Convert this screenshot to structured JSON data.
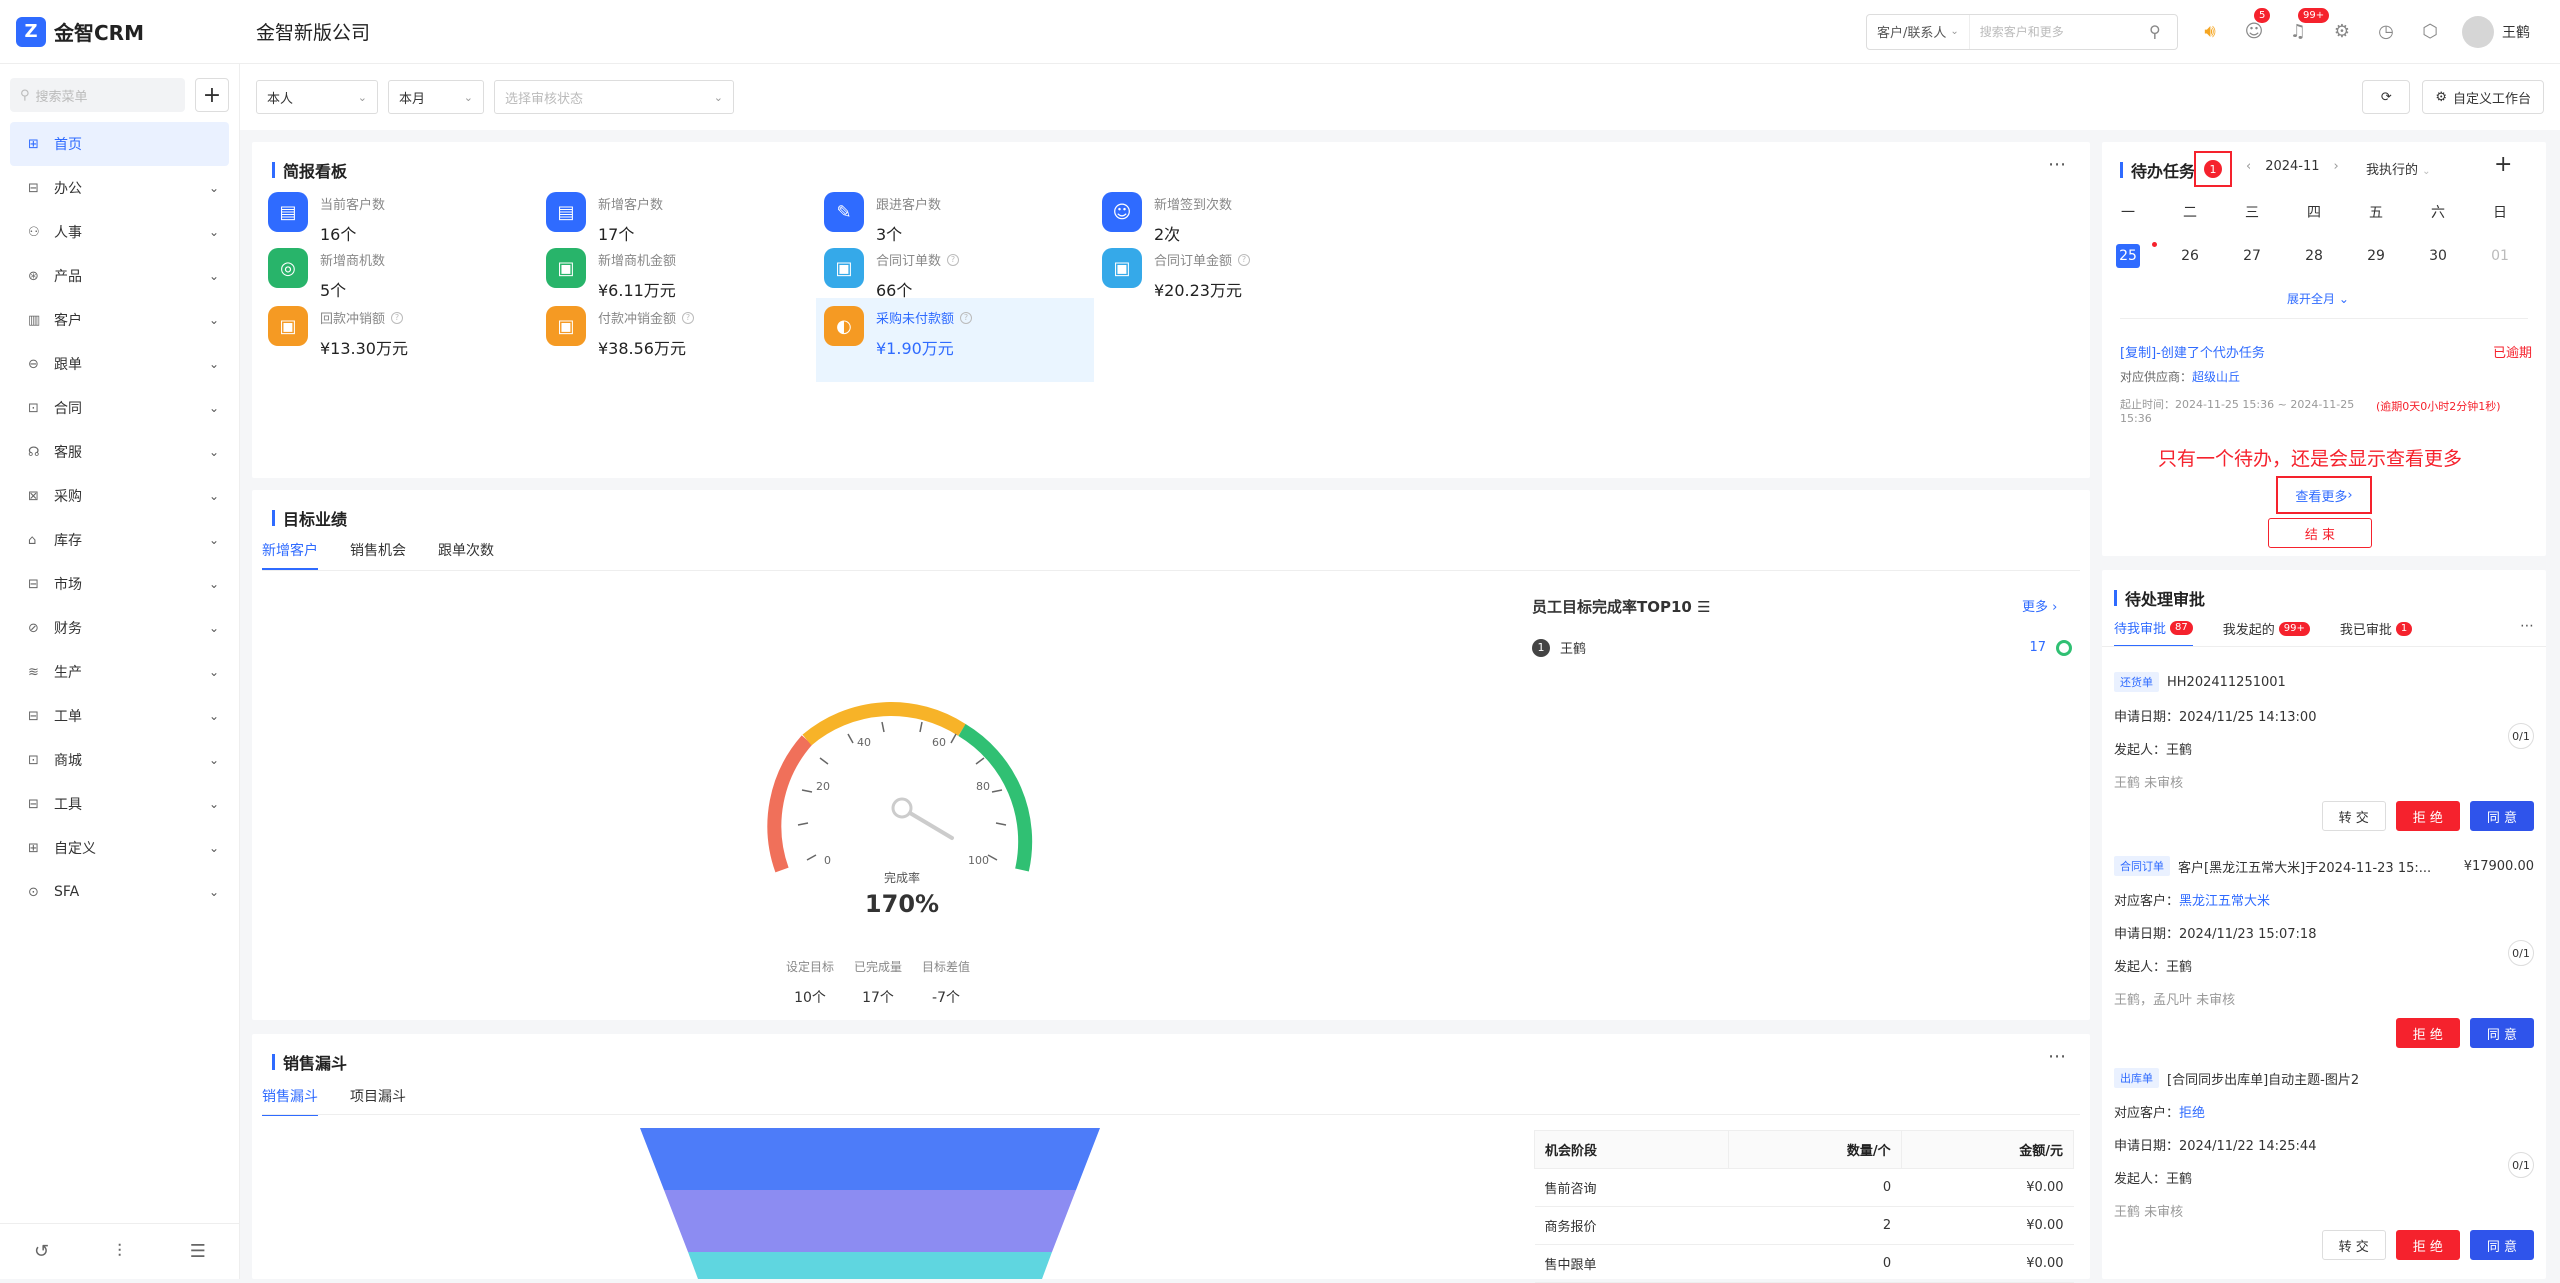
{
  "header": {
    "brand": "金智CRM",
    "company": "金智新版公司",
    "search_scope": "客户/联系人",
    "search_placeholder": "搜索客户和更多",
    "badge_contacts": "5",
    "badge_notice": "99+",
    "user": "王鹤"
  },
  "sidebar": {
    "search_placeholder": "搜索菜单",
    "items": [
      {
        "label": "首页",
        "icon": "home-icon"
      },
      {
        "label": "办公",
        "icon": "office-icon"
      },
      {
        "label": "人事",
        "icon": "person-icon"
      },
      {
        "label": "产品",
        "icon": "cube-icon"
      },
      {
        "label": "客户",
        "icon": "chart-icon"
      },
      {
        "label": "跟单",
        "icon": "follow-icon"
      },
      {
        "label": "合同",
        "icon": "contract-icon"
      },
      {
        "label": "客服",
        "icon": "headset-icon"
      },
      {
        "label": "采购",
        "icon": "bag-icon"
      },
      {
        "label": "库存",
        "icon": "warehouse-icon"
      },
      {
        "label": "市场",
        "icon": "book-icon"
      },
      {
        "label": "财务",
        "icon": "finance-icon"
      },
      {
        "label": "生产",
        "icon": "factory-icon"
      },
      {
        "label": "工单",
        "icon": "ticket-icon"
      },
      {
        "label": "商城",
        "icon": "shop-icon"
      },
      {
        "label": "工具",
        "icon": "tool-icon"
      },
      {
        "label": "自定义",
        "icon": "grid-icon"
      },
      {
        "label": "SFA",
        "icon": "sfa-icon"
      }
    ]
  },
  "filters": {
    "scope": "本人",
    "period": "本月",
    "audit_placeholder": "选择审核状态",
    "custom_btn": "自定义工作台"
  },
  "brief": {
    "title": "简报看板",
    "kpis": [
      {
        "label": "当前客户数",
        "value": "16个",
        "color": "#2f6bff"
      },
      {
        "label": "新增客户数",
        "value": "17个",
        "color": "#2f6bff"
      },
      {
        "label": "跟进客户数",
        "value": "3个",
        "color": "#2f6bff"
      },
      {
        "label": "新增签到次数",
        "value": "2次",
        "color": "#2f6bff"
      },
      {
        "label": "新增商机数",
        "value": "5个",
        "color": "#28b46a"
      },
      {
        "label": "新增商机金额",
        "value": "¥6.11万元",
        "color": "#28b46a"
      },
      {
        "label": "合同订单数",
        "value": "66个",
        "color": "#35a9e9"
      },
      {
        "label": "合同订单金额",
        "value": "¥20.23万元",
        "color": "#35a9e9"
      },
      {
        "label": "回款冲销额",
        "value": "¥13.30万元",
        "color": "#f59a23"
      },
      {
        "label": "付款冲销金额",
        "value": "¥38.56万元",
        "color": "#f59a23"
      },
      {
        "label": "采购未付款额",
        "value": "¥1.90万元",
        "color": "#f59a23"
      }
    ]
  },
  "target": {
    "title": "目标业绩",
    "tabs": [
      "新增客户",
      "销售机会",
      "跟单次数"
    ],
    "gauge_label": "完成率",
    "gauge_value": "170%",
    "gauge_ticks": [
      "0",
      "20",
      "40",
      "60",
      "80",
      "100"
    ],
    "stats": [
      {
        "label": "设定目标",
        "value": "10个"
      },
      {
        "label": "已完成量",
        "value": "17个"
      },
      {
        "label": "目标差值",
        "value": "-7个"
      }
    ],
    "top_title": "员工目标完成率TOP10",
    "more": "更多",
    "rank": [
      {
        "no": "1",
        "name": "王鹤",
        "value": "17"
      }
    ]
  },
  "funnel": {
    "title": "销售漏斗",
    "tabs": [
      "销售漏斗",
      "项目漏斗"
    ],
    "columns": [
      "机会阶段",
      "数量/个",
      "金额/元"
    ],
    "rows": [
      [
        "售前咨询",
        "0",
        "¥0.00"
      ],
      [
        "商务报价",
        "2",
        "¥0.00"
      ],
      [
        "售中跟单",
        "0",
        "¥0.00"
      ]
    ]
  },
  "todo": {
    "title": "待办任务",
    "count": "1",
    "month": "2024-11",
    "filter": "我执行的",
    "weekdays": [
      "一",
      "二",
      "三",
      "四",
      "五",
      "六",
      "日"
    ],
    "days": [
      "25",
      "26",
      "27",
      "28",
      "29",
      "30",
      "01"
    ],
    "expand": "展开全月",
    "task_title": "[复制]-创建了个代办任务",
    "overdue": "已逾期",
    "supplier_label": "对应供应商：",
    "supplier": "超级山丘",
    "time_label": "起止时间：",
    "time": "2024-11-25 15:36 ~ 2024-11-25 15:36",
    "overdue_note": "(逾期0天0小时2分钟1秒)",
    "annotation": "只有一个待办，还是会显示查看更多",
    "view_more": "查看更多",
    "finish": "结 束"
  },
  "approval": {
    "title": "待处理审批",
    "tabs": [
      {
        "label": "待我审批",
        "count": "87"
      },
      {
        "label": "我发起的",
        "count": "99+"
      },
      {
        "label": "我已审批",
        "count": "1"
      }
    ],
    "items": [
      {
        "tag": "还货单",
        "title": "HH202411251001",
        "date_label": "申请日期：",
        "date": "2024/11/25 14:13:00",
        "initiator_label": "发起人：",
        "initiator": "王鹤",
        "status": "王鹤 未审核",
        "ratio": "0/1"
      },
      {
        "tag": "合同订单",
        "title": "客户[黑龙江五常大米]于2024-11-23 15:...",
        "amount": "¥17900.00",
        "customer_label": "对应客户：",
        "customer": "黑龙江五常大米",
        "date_label": "申请日期：",
        "date": "2024/11/23 15:07:18",
        "initiator_label": "发起人：",
        "initiator": "王鹤",
        "status": "王鹤，孟凡叶 未审核",
        "ratio": "0/1"
      },
      {
        "tag": "出库单",
        "title": "[合同同步出库单]自动主题-图片2",
        "customer_label": "对应客户：",
        "customer": "拒绝",
        "date_label": "申请日期：",
        "date": "2024/11/22 14:25:44",
        "initiator_label": "发起人：",
        "initiator": "王鹤",
        "status": "王鹤 未审核",
        "ratio": "0/1"
      }
    ],
    "btn_transfer": "转 交",
    "btn_reject": "拒 绝",
    "btn_agree": "同 意"
  }
}
